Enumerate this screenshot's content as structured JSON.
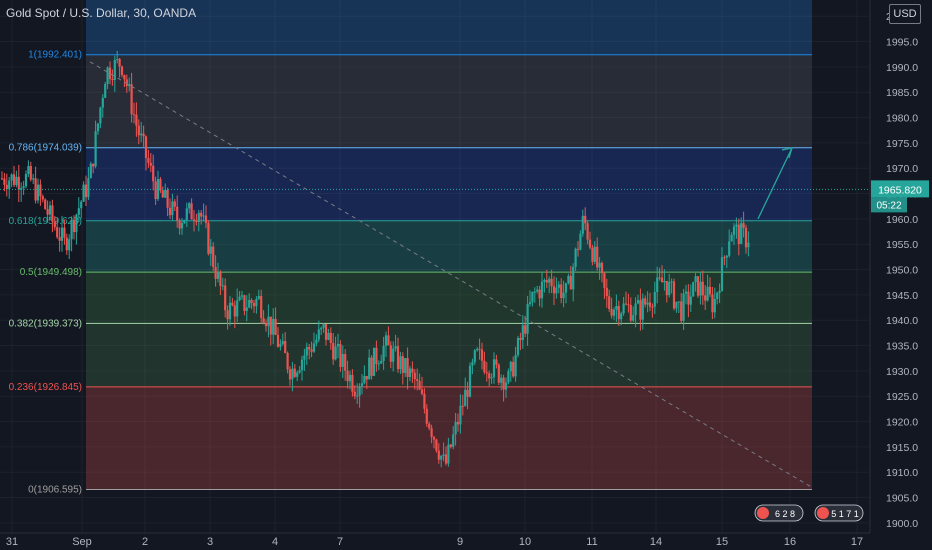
{
  "header": {
    "symbol_title": "Gold Spot / U.S. Dollar, 30, OANDA",
    "currency_button": "USD"
  },
  "price_axis": {
    "current_price": "1965.820",
    "countdown": "05:22"
  },
  "colors": {
    "background": "#131722",
    "up": "#26a69a",
    "down": "#ef5350",
    "accent_arrow": "#26a69a",
    "trendline": "#787b86"
  },
  "chart_data": {
    "type": "candlestick",
    "title": "",
    "xlabel": "",
    "ylabel": "",
    "ylim": [
      1898,
      2003
    ],
    "x_tick_labels": [
      "31",
      "Sep",
      "2",
      "3",
      "4",
      "7",
      "9",
      "10",
      "11",
      "14",
      "15",
      "16",
      "17"
    ],
    "y_ticks": [
      1900,
      1905,
      1910,
      1915,
      1920,
      1925,
      1930,
      1935,
      1940,
      1945,
      1950,
      1955,
      1960,
      1965,
      1970,
      1975,
      1980,
      1985,
      1990,
      1995,
      2000
    ],
    "fibonacci_retracement": {
      "high": 1992.401,
      "low": 1906.595,
      "levels": [
        {
          "ratio": "1",
          "price": 1992.401,
          "label": "1(1992.401)",
          "color": "#1e88e5"
        },
        {
          "ratio": "0.786",
          "price": 1974.039,
          "label": "0.786(1974.039)",
          "color": "#64b5f6"
        },
        {
          "ratio": "0.618",
          "price": 1959.623,
          "label": "0.618(1959.623)",
          "color": "#26a69a"
        },
        {
          "ratio": "0.5",
          "price": 1949.498,
          "label": "0.5(1949.498)",
          "color": "#66bb6a"
        },
        {
          "ratio": "0.382",
          "price": 1939.373,
          "label": "0.382(1939.373)",
          "color": "#a5d6a7"
        },
        {
          "ratio": "0.236",
          "price": 1926.845,
          "label": "0.236(1926.845)",
          "color": "#ef5350"
        },
        {
          "ratio": "0",
          "price": 1906.595,
          "label": "0(1906.595)",
          "color": "#9e9e9e"
        }
      ]
    },
    "price_path": [
      {
        "x": "Aug 31",
        "price": 1968
      },
      {
        "x": "Aug 31",
        "price": 1955
      },
      {
        "x": "Sep 1",
        "price": 1968
      },
      {
        "x": "Sep 1",
        "price": 1989
      },
      {
        "x": "Sep 1",
        "price": 1991
      },
      {
        "x": "Sep 1",
        "price": 1978
      },
      {
        "x": "Sep 2",
        "price": 1966
      },
      {
        "x": "Sep 2",
        "price": 1960
      },
      {
        "x": "Sep 2",
        "price": 1962
      },
      {
        "x": "Sep 3",
        "price": 1942
      },
      {
        "x": "Sep 3",
        "price": 1944
      },
      {
        "x": "Sep 4",
        "price": 1930
      },
      {
        "x": "Sep 4",
        "price": 1938
      },
      {
        "x": "Sep 7",
        "price": 1927
      },
      {
        "x": "Sep 7",
        "price": 1935
      },
      {
        "x": "Sep 8",
        "price": 1928
      },
      {
        "x": "Sep 8",
        "price": 1911
      },
      {
        "x": "Sep 9",
        "price": 1933
      },
      {
        "x": "Sep 9",
        "price": 1928
      },
      {
        "x": "Sep 10",
        "price": 1945
      },
      {
        "x": "Sep 10",
        "price": 1948
      },
      {
        "x": "Sep 10",
        "price": 1945
      },
      {
        "x": "Sep 10",
        "price": 1960
      },
      {
        "x": "Sep 11",
        "price": 1943
      },
      {
        "x": "Sep 11",
        "price": 1942
      },
      {
        "x": "Sep 14",
        "price": 1948
      },
      {
        "x": "Sep 14",
        "price": 1942
      },
      {
        "x": "Sep 14",
        "price": 1947
      },
      {
        "x": "Sep 14",
        "price": 1943
      },
      {
        "x": "Sep 15",
        "price": 1958
      },
      {
        "x": "Sep 15",
        "price": 1956
      },
      {
        "x": "Sep 15",
        "price": 1966
      },
      {
        "x": "Sep 15",
        "price": 1965.82
      }
    ],
    "trendline": {
      "from": {
        "x": "Sep 1",
        "price": 1991
      },
      "to": {
        "x": "Sep 16",
        "price": 1907
      }
    },
    "projection_arrow": {
      "from": {
        "x": "Sep 15",
        "price": 1960
      },
      "to": {
        "x": "Sep 16",
        "price": 1974
      }
    }
  },
  "event_markers": [
    {
      "icons": "6 2 8"
    },
    {
      "icons": "5 1 7 1"
    }
  ]
}
